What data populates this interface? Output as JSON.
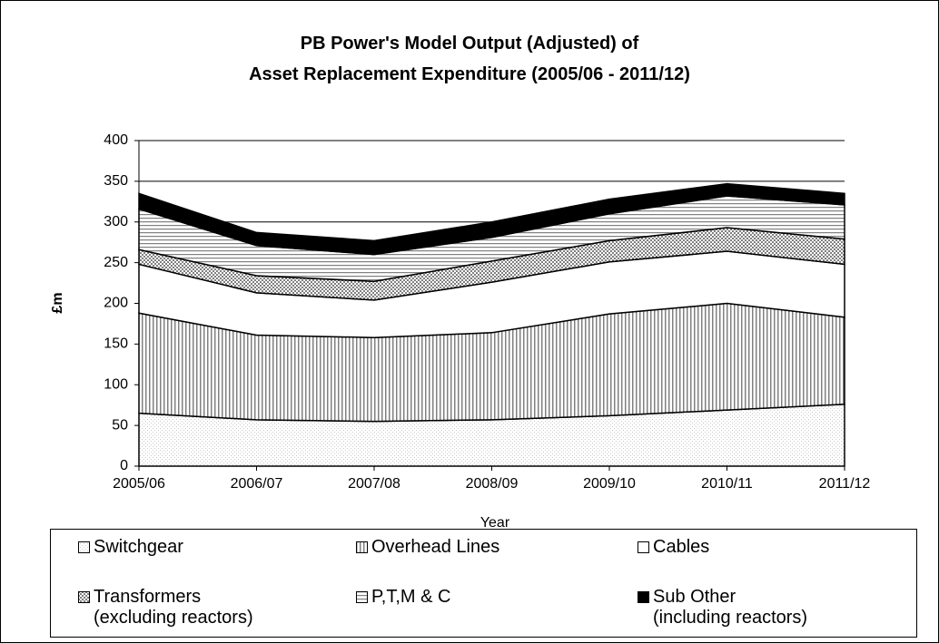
{
  "chart_data": {
    "type": "stacked-area",
    "title": "PB Power's Model Output (Adjusted) of\nAsset Replacement Expenditure (2005/06 - 2011/12)",
    "x_label": "Year",
    "y_label": "£m",
    "categories": [
      "2005/06",
      "2006/07",
      "2007/08",
      "2008/09",
      "2009/10",
      "2010/11",
      "2011/12"
    ],
    "ylim": [
      0,
      400
    ],
    "yticks": [
      0,
      50,
      100,
      150,
      200,
      250,
      300,
      350,
      400
    ],
    "grid": true,
    "series": [
      {
        "name": "Switchgear",
        "color": "#c8c8c8",
        "pattern": "fine-dots",
        "values": [
          65,
          57,
          55,
          57,
          62,
          69,
          76
        ]
      },
      {
        "name": "Overhead Lines",
        "color": "#808080",
        "pattern": "vertical-lines",
        "values": [
          123,
          104,
          103,
          107,
          125,
          131,
          107
        ]
      },
      {
        "name": "Cables",
        "color": "#ffffff",
        "pattern": "none",
        "values": [
          60,
          52,
          46,
          62,
          64,
          64,
          65
        ]
      },
      {
        "name": "Transformers\n(excluding reactors)",
        "color": "#808080",
        "pattern": "dots",
        "values": [
          18,
          21,
          23,
          26,
          26,
          29,
          31
        ]
      },
      {
        "name": "P,T,M & C",
        "color": "#808080",
        "pattern": "horizontal-lines",
        "values": [
          50,
          37,
          33,
          29,
          33,
          39,
          42
        ]
      },
      {
        "name": "Sub Other\n(including reactors)",
        "color": "#000000",
        "pattern": "none",
        "values": [
          19,
          16,
          17,
          19,
          18,
          15,
          14
        ]
      }
    ]
  }
}
